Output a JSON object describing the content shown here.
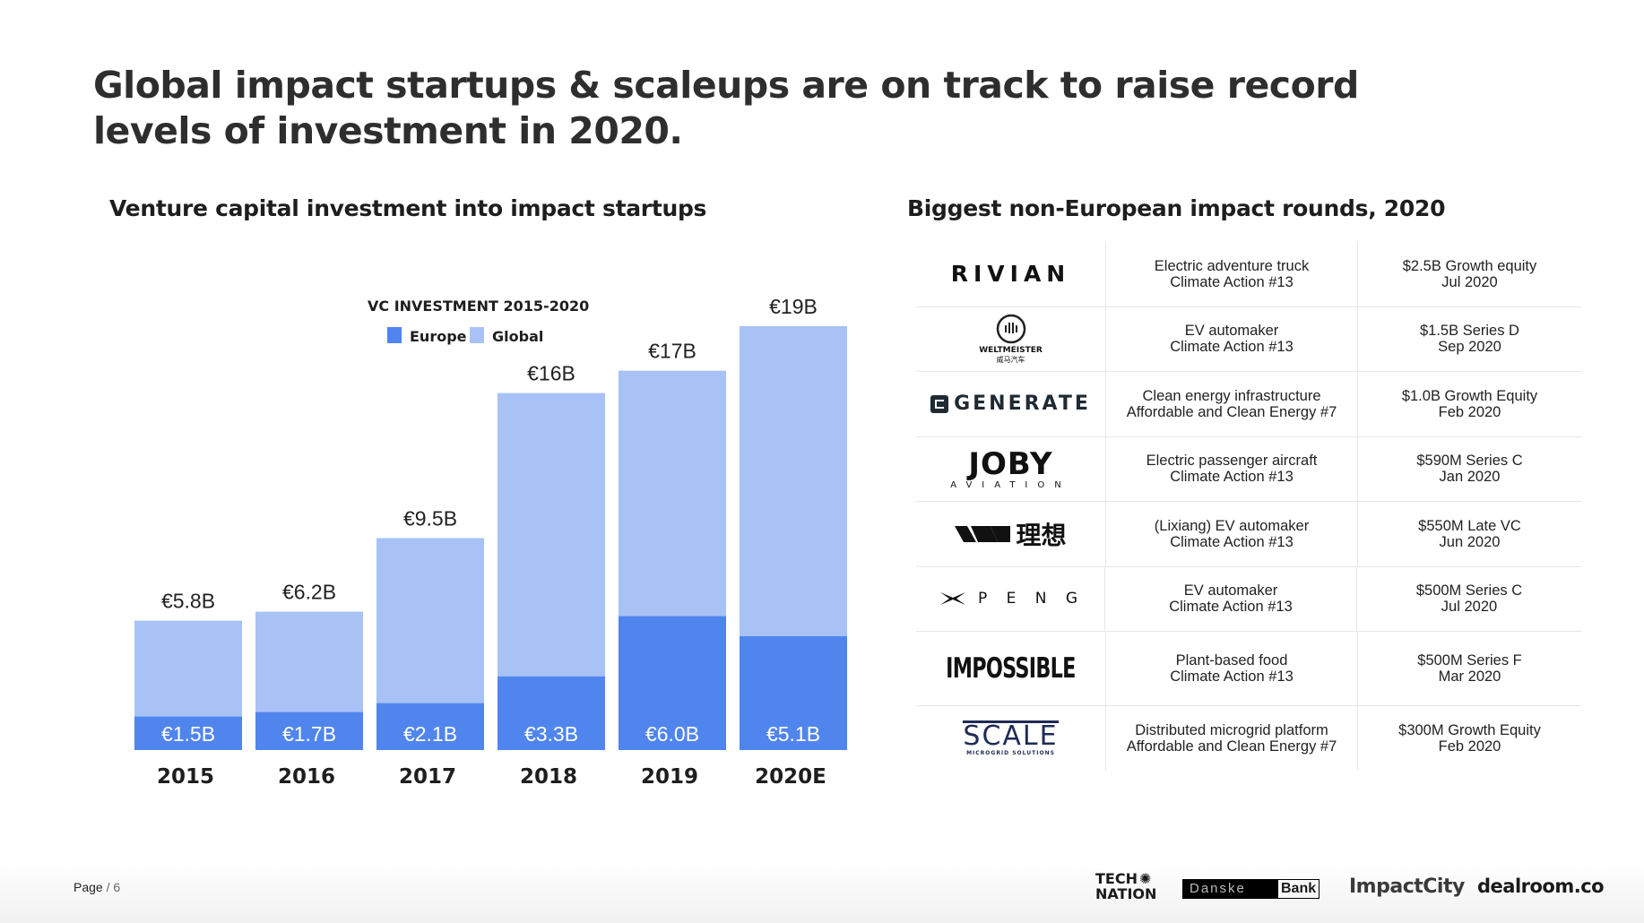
{
  "headline": "Global impact startups & scaleups are on track to raise record levels of investment in 2020.",
  "chart_title": "Venture capital investment into impact startups",
  "table_title": "Biggest non-European impact rounds, 2020",
  "chart_data": {
    "type": "bar",
    "stacked": "overlay",
    "title": "VC INVESTMENT 2015-2020",
    "categories": [
      "2015",
      "2016",
      "2017",
      "2018",
      "2019",
      "2020E"
    ],
    "series": [
      {
        "name": "Europe",
        "values": [
          1.5,
          1.7,
          2.1,
          3.3,
          6.0,
          5.1
        ],
        "labels": [
          "€1.5B",
          "€1.7B",
          "€2.1B",
          "€3.3B",
          "€6.0B",
          "€5.1B"
        ],
        "color": "#5085ee"
      },
      {
        "name": "Global",
        "values": [
          5.8,
          6.2,
          9.5,
          16,
          17,
          19
        ],
        "labels": [
          "€5.8B",
          "€6.2B",
          "€9.5B",
          "€16B",
          "€17B",
          "€19B"
        ],
        "color": "#a8c2f6"
      }
    ],
    "legend_position": "top",
    "grid": false
  },
  "rounds": [
    {
      "company": "RIVIAN",
      "logo": "rivian-logo",
      "desc1": "Electric adventure truck",
      "desc2": "Climate Action #13",
      "deal1": "$2.5B Growth equity",
      "deal2": "Jul 2020"
    },
    {
      "company": "WELTMEISTER",
      "logo_sub": "威马汽车",
      "logo": "weltmeister-logo",
      "desc1": "EV automaker",
      "desc2": "Climate Action #13",
      "deal1": "$1.5B Series D",
      "deal2": "Sep 2020"
    },
    {
      "company": "GENERATE",
      "logo": "generate-logo",
      "desc1": "Clean energy infrastructure",
      "desc2": "Affordable and Clean Energy #7",
      "deal1": "$1.0B Growth Equity",
      "deal2": "Feb 2020"
    },
    {
      "company": "JOBY",
      "logo_sub": "AVIATION",
      "logo": "joby-logo",
      "desc1": "Electric passenger aircraft",
      "desc2": "Climate Action #13",
      "deal1": "$590M Series C",
      "deal2": "Jan 2020"
    },
    {
      "company": "理想",
      "logo": "lixiang-logo",
      "desc1": "(Lixiang) EV automaker",
      "desc2": "Climate Action #13",
      "deal1": "$550M Late VC",
      "deal2": "Jun 2020"
    },
    {
      "company": "P E N G",
      "logo": "xpeng-logo",
      "desc1": "EV automaker",
      "desc2": "Climate Action #13",
      "deal1": "$500M Series C",
      "deal2": "Jul 2020"
    },
    {
      "company": "IMPOSSIBLE",
      "logo": "impossible-logo",
      "desc1": "Plant-based food",
      "desc2": "Climate Action #13",
      "deal1": "$500M Series F",
      "deal2": "Mar 2020"
    },
    {
      "company": "SCALE",
      "logo_sub": "MICROGRID SOLUTIONS",
      "logo": "scale-logo",
      "desc1": "Distributed microgrid platform",
      "desc2": "Affordable and Clean Energy #7",
      "deal1": "$300M Growth Equity",
      "deal2": "Feb 2020"
    }
  ],
  "footer": {
    "page_word": "Page",
    "page_num": "/ 6",
    "partners": {
      "technation1": "TECH",
      "technation2": "NATION",
      "danske1": "Danske",
      "danske2": "Bank",
      "impactcity": "ImpactCity",
      "dealroom": "dealroom.co"
    }
  }
}
